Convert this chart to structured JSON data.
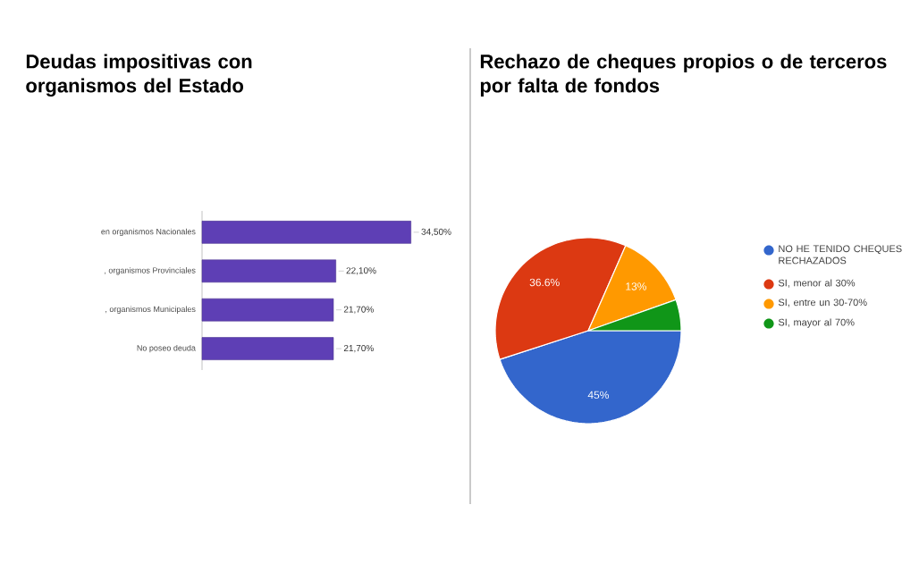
{
  "chart_data": [
    {
      "type": "bar",
      "title": "Deudas impositivas con organismos del Estado",
      "orientation": "horizontal",
      "categories": [
        "en organismos Nacionales",
        ", organismos Provinciales",
        ", organismos Municipales",
        "No poseo deuda"
      ],
      "values": [
        34.5,
        22.1,
        21.7,
        21.7
      ],
      "value_labels": [
        "34,50%",
        "22,10%",
        "21,70%",
        "21,70%"
      ],
      "color": "#5e3fb5"
    },
    {
      "type": "pie",
      "title": "Rechazo de cheques propios o de terceros por falta de fondos",
      "categories": [
        "NO HE TENIDO CHEQUES RECHAZADOS",
        "SI, menor al 30%",
        "SI, entre un 30-70%",
        "SI, mayor al 70%"
      ],
      "values": [
        45,
        36.6,
        13,
        5.4
      ],
      "value_labels": [
        "45%",
        "36.6%",
        "13%",
        null
      ],
      "colors": [
        "#3366cc",
        "#dc3912",
        "#ff9900",
        "#109618"
      ],
      "legend": "right"
    }
  ]
}
